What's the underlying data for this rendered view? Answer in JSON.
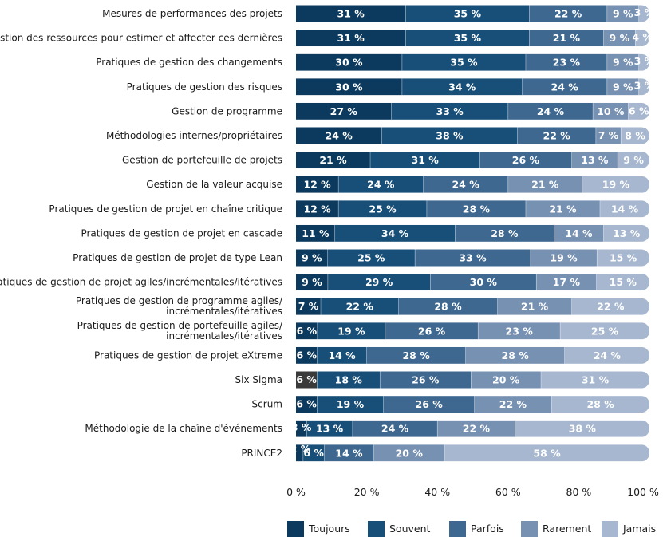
{
  "chart_data": {
    "type": "bar",
    "orientation": "horizontal-stacked-100",
    "categories": [
      [
        "Mesures de performances des projets"
      ],
      [
        "Gestion des ressources pour estimer et affecter ces dernières"
      ],
      [
        "Pratiques de gestion des changements"
      ],
      [
        "Pratiques de gestion des risques"
      ],
      [
        "Gestion de programme"
      ],
      [
        "Méthodologies internes/propriétaires"
      ],
      [
        "Gestion de portefeuille de projets"
      ],
      [
        "Gestion de la valeur acquise"
      ],
      [
        "Pratiques de gestion de projet en chaîne critique"
      ],
      [
        "Pratiques de gestion de projet en cascade"
      ],
      [
        "Pratiques de gestion de projet de type Lean"
      ],
      [
        "Pratiques de gestion de projet agiles/incrémentales/itératives"
      ],
      [
        "Pratiques de gestion de programme agiles/",
        "incrémentales/itératives"
      ],
      [
        "Pratiques de gestion de portefeuille agiles/",
        "incrémentales/itératives"
      ],
      [
        "Pratiques de gestion de projet eXtreme"
      ],
      [
        "Six Sigma"
      ],
      [
        "Scrum"
      ],
      [
        "Méthodologie de la chaîne d'événements"
      ],
      [
        "PRINCE2"
      ]
    ],
    "series": [
      {
        "name": "Toujours",
        "color": "#0b3a5e",
        "values": [
          31,
          31,
          30,
          30,
          27,
          24,
          21,
          12,
          12,
          11,
          9,
          9,
          7,
          6,
          6,
          6,
          6,
          3,
          2
        ]
      },
      {
        "name": "Souvent",
        "color": "#184f78",
        "values": [
          35,
          35,
          35,
          34,
          33,
          38,
          31,
          24,
          25,
          34,
          25,
          29,
          22,
          19,
          14,
          18,
          19,
          13,
          6
        ]
      },
      {
        "name": "Parfois",
        "color": "#3e6890",
        "values": [
          22,
          21,
          23,
          24,
          24,
          22,
          26,
          24,
          28,
          28,
          33,
          30,
          28,
          26,
          28,
          26,
          26,
          24,
          14
        ]
      },
      {
        "name": "Rarement",
        "color": "#7791b2",
        "values": [
          9,
          9,
          9,
          9,
          10,
          7,
          13,
          21,
          21,
          14,
          19,
          17,
          21,
          23,
          28,
          20,
          22,
          22,
          20
        ]
      },
      {
        "name": "Jamais",
        "color": "#a6b7cf",
        "values": [
          3,
          4,
          3,
          3,
          6,
          8,
          9,
          19,
          14,
          13,
          15,
          15,
          22,
          25,
          24,
          31,
          28,
          38,
          58
        ]
      }
    ],
    "label_suffix": " %",
    "six_sigma_toujours_color": "#3a3a3a",
    "x_ticks": [
      "0 %",
      "20 %",
      "40 %",
      "60 %",
      "80 %",
      "100 %"
    ],
    "xlim": [
      0,
      100
    ],
    "grid": false,
    "legend_position": "bottom"
  }
}
